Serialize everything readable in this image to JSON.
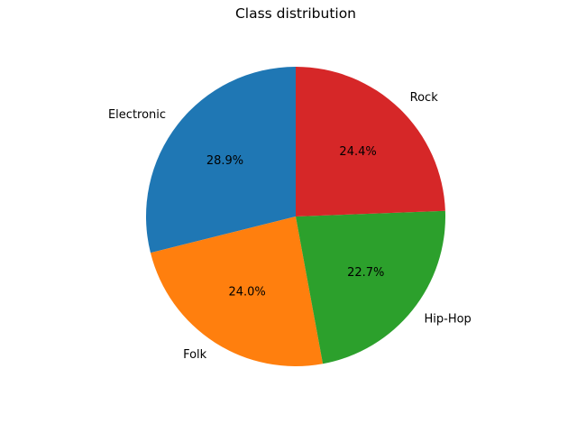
{
  "chart_data": {
    "type": "pie",
    "title": "Class distribution",
    "categories": [
      "Electronic",
      "Folk",
      "Hip-Hop",
      "Rock"
    ],
    "values": [
      28.9,
      24.0,
      22.7,
      24.4
    ],
    "percent_labels": [
      "28.9%",
      "24.0%",
      "22.7%",
      "24.4%"
    ],
    "colors": [
      "#1f77b4",
      "#ff7f0e",
      "#2ca02c",
      "#d62728"
    ],
    "start_angle_deg": 90,
    "direction": "counterclockwise",
    "legend": "none"
  }
}
